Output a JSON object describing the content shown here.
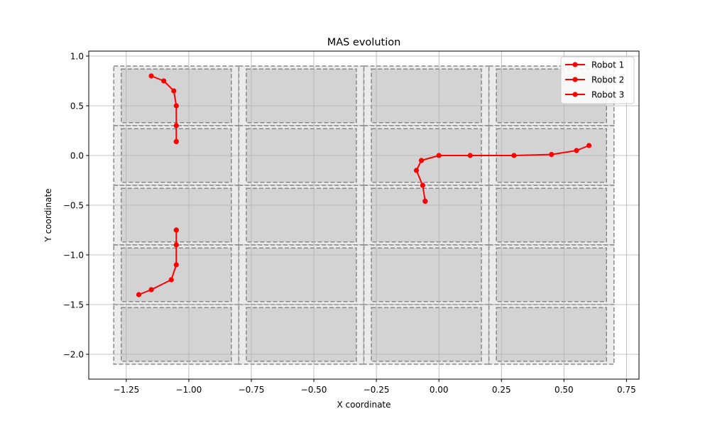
{
  "chart_data": {
    "type": "line",
    "title": "MAS evolution",
    "xlabel": "X coordinate",
    "ylabel": "Y coordinate",
    "xlim": [
      -1.4,
      0.8
    ],
    "ylim": [
      -2.25,
      1.05
    ],
    "xticks": [
      -1.25,
      -1.0,
      -0.75,
      -0.5,
      -0.25,
      0.0,
      0.25,
      0.5,
      0.75
    ],
    "xtick_labels": [
      "−1.25",
      "−1.00",
      "−0.75",
      "−0.50",
      "−0.25",
      "0.00",
      "0.25",
      "0.50",
      "0.75"
    ],
    "yticks": [
      1.0,
      0.5,
      0.0,
      -0.5,
      -1.0,
      -1.5,
      -2.0
    ],
    "ytick_labels": [
      "1.0",
      "0.5",
      "0.0",
      "−0.5",
      "−1.0",
      "−1.5",
      "−2.0"
    ],
    "grid": true,
    "legend_position": "top-right",
    "grid_region": {
      "x_bounds": [
        -1.3,
        -0.8,
        -0.3,
        0.2,
        0.7
      ],
      "y_bounds": [
        0.9,
        0.3,
        -0.3,
        -0.9,
        -1.5,
        -2.1
      ],
      "outer_fill": "#ebebeb",
      "inner_fill": "#d3d3d3",
      "inner_inset": 0.03
    },
    "series": [
      {
        "name": "Robot 1",
        "color": "#ff0000",
        "x": [
          -1.15,
          -1.1,
          -1.06,
          -1.05,
          -1.05,
          -1.05,
          -1.05
        ],
        "y": [
          0.8,
          0.75,
          0.65,
          0.5,
          0.3,
          0.14,
          0.14
        ]
      },
      {
        "name": "Robot 2",
        "color": "#ff0000",
        "x": [
          0.6,
          0.55,
          0.45,
          0.3,
          0.125,
          0.0,
          -0.07,
          -0.09,
          -0.065,
          -0.055,
          -0.055
        ],
        "y": [
          0.1,
          0.05,
          0.01,
          0.0,
          0.0,
          0.0,
          -0.05,
          -0.15,
          -0.3,
          -0.46,
          -0.46
        ]
      },
      {
        "name": "Robot 3",
        "color": "#ff0000",
        "x": [
          -1.2,
          -1.15,
          -1.07,
          -1.05,
          -1.05,
          -1.05,
          -1.05
        ],
        "y": [
          -1.4,
          -1.35,
          -1.25,
          -1.1,
          -0.9,
          -0.75,
          -0.75
        ]
      }
    ]
  }
}
